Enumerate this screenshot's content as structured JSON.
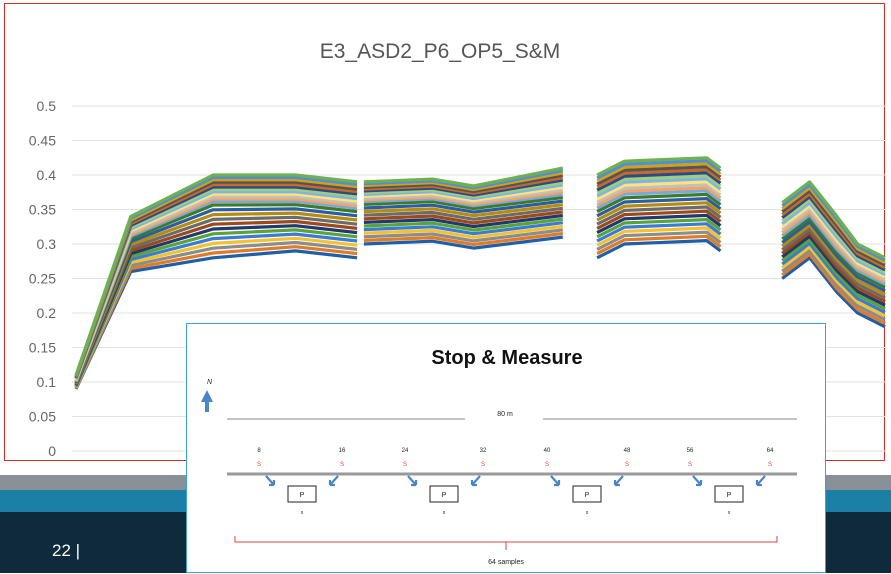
{
  "footer": {
    "page_number": "22 |"
  },
  "chart_data": {
    "type": "line",
    "title": "E3_ASD2_P6_OP5_S&M",
    "xlabel": "",
    "ylabel": "",
    "ylim": [
      0,
      0.5
    ],
    "yticks": [
      "0",
      "0.05",
      "0.1",
      "0.15",
      "0.2",
      "0.25",
      "0.3",
      "0.35",
      "0.4",
      "0.45",
      "0.5"
    ],
    "grid": true,
    "legend": "none",
    "series_count": 24,
    "x": [
      0,
      0.4,
      1,
      1.6,
      2.05,
      2.1,
      3.55,
      3.6,
      5.15,
      5.2
    ],
    "series": [
      {
        "values": [
          0.1,
          0.31,
          0.36,
          0.36,
          0.35,
          0.36,
          0.37,
          0.37,
          0.33,
          0.24
        ]
      },
      {
        "values": [
          0.09,
          0.26,
          0.28,
          0.29,
          0.28,
          0.3,
          0.31,
          0.3,
          0.27,
          0.18
        ]
      },
      {
        "values": [
          0.11,
          0.34,
          0.4,
          0.4,
          0.39,
          0.39,
          0.41,
          0.42,
          0.38,
          0.28
        ]
      }
    ]
  },
  "inset": {
    "title": "Stop & Measure",
    "north_label": "N",
    "distance_label": "80 m",
    "distance_ticks": [
      "8",
      "16",
      "24",
      "32",
      "40",
      "48",
      "56",
      "64"
    ],
    "point_labels": [
      "S",
      "S",
      "S",
      "S",
      "S",
      "S",
      "S",
      "S"
    ],
    "panel_label": "P",
    "panel_sublabels": [
      "x",
      "x",
      "x",
      "x"
    ],
    "samples_label": "64 samples"
  },
  "colors": {
    "frame": "#d62b2b",
    "inset_border": "#3aa4d4",
    "footer": "#0e2a3b",
    "accent_band": "#1c7fa6"
  }
}
